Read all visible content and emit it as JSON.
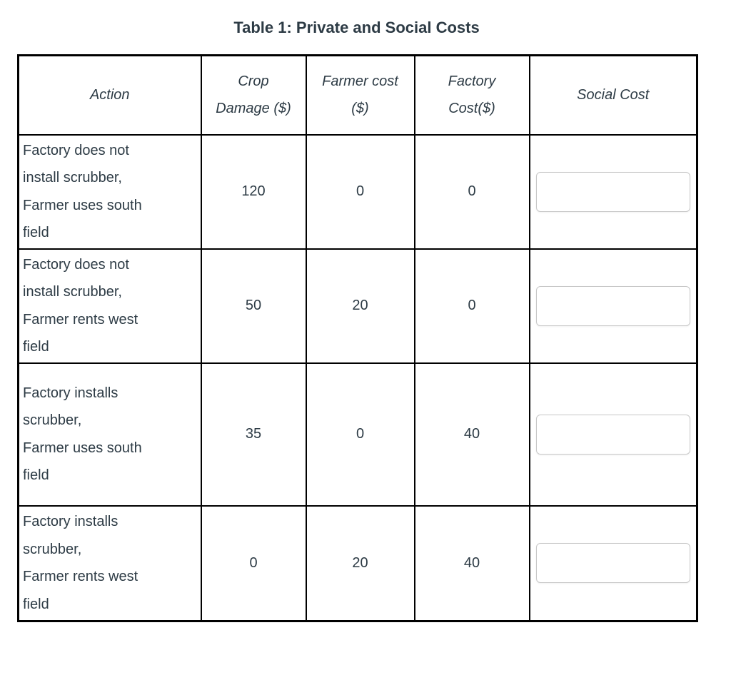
{
  "title": "Table 1: Private and Social Costs",
  "colors": {
    "text": "#2d3b45",
    "table_border": "#000000",
    "input_border": "#c7c7c7",
    "background": "#ffffff"
  },
  "table": {
    "headers": [
      {
        "key": "action",
        "label": "Action",
        "lines": [
          "Action"
        ]
      },
      {
        "key": "crop-damage",
        "label": "Crop Damage ($)",
        "lines": [
          "Crop",
          "Damage ($)"
        ]
      },
      {
        "key": "farmer-cost",
        "label": "Farmer cost ($)",
        "lines": [
          "Farmer cost",
          "($)"
        ]
      },
      {
        "key": "factory-cost",
        "label": "Factory Cost($)",
        "lines": [
          "Factory",
          "Cost($)"
        ]
      },
      {
        "key": "social-cost",
        "label": "Social Cost",
        "lines": [
          "Social Cost"
        ]
      }
    ],
    "rows": [
      {
        "action": "Factory does not install scrubber, Farmer uses south field",
        "action_lines": [
          "Factory does not",
          "install scrubber,",
          "Farmer uses south",
          "field"
        ],
        "crop_damage": "120",
        "farmer_cost": "0",
        "factory_cost": "0",
        "social_cost_input": {
          "value": "",
          "placeholder": ""
        }
      },
      {
        "action": "Factory does not install scrubber, Farmer rents west field",
        "action_lines": [
          "Factory does not",
          "install scrubber,",
          "Farmer rents west",
          "field"
        ],
        "crop_damage": "50",
        "farmer_cost": "20",
        "factory_cost": "0",
        "social_cost_input": {
          "value": "",
          "placeholder": ""
        }
      },
      {
        "action": "Factory installs scrubber, Farmer uses south field",
        "action_lines": [
          "Factory installs",
          "scrubber,",
          "Farmer uses south",
          "field"
        ],
        "crop_damage": "35",
        "farmer_cost": "0",
        "factory_cost": "40",
        "social_cost_input": {
          "value": "",
          "placeholder": ""
        }
      },
      {
        "action": "Factory installs scrubber, Farmer rents west field",
        "action_lines": [
          "Factory installs",
          "scrubber,",
          "Farmer rents west",
          "field"
        ],
        "crop_damage": "0",
        "farmer_cost": "20",
        "factory_cost": "40",
        "social_cost_input": {
          "value": "",
          "placeholder": ""
        }
      }
    ]
  }
}
